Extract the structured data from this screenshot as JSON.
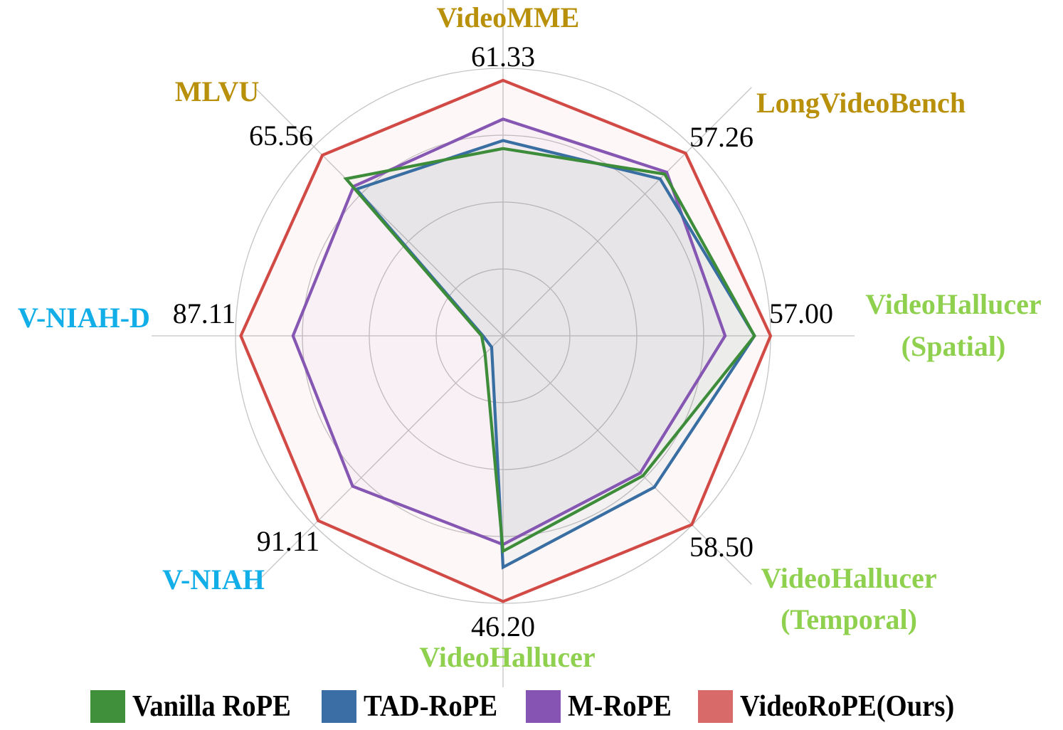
{
  "chart_data": {
    "type": "radar",
    "title": "",
    "axes": [
      {
        "name": "VideoMME",
        "label_lines": [
          "VideoMME"
        ],
        "group": "long-video",
        "max_label": "61.33"
      },
      {
        "name": "LongVideoBench",
        "label_lines": [
          "LongVideoBench"
        ],
        "group": "long-video",
        "max_label": "57.26"
      },
      {
        "name": "VideoHallucer (Spatial)",
        "label_lines": [
          "VideoHallucer",
          "(Spatial)"
        ],
        "group": "hallucination",
        "max_label": "57.00"
      },
      {
        "name": "VideoHallucer (Temporal)",
        "label_lines": [
          "VideoHallucer",
          "(Temporal)"
        ],
        "group": "hallucination",
        "max_label": "58.50"
      },
      {
        "name": "VideoHallucer",
        "label_lines": [
          "VideoHallucer"
        ],
        "group": "hallucination",
        "max_label": "46.20"
      },
      {
        "name": "V-NIAH",
        "label_lines": [
          "V-NIAH"
        ],
        "group": "retrieval",
        "max_label": "91.11"
      },
      {
        "name": "V-NIAH-D",
        "label_lines": [
          "V-NIAH-D"
        ],
        "group": "retrieval",
        "max_label": "87.11"
      },
      {
        "name": "MLVU",
        "label_lines": [
          "MLVU"
        ],
        "group": "long-video",
        "max_label": "65.56"
      }
    ],
    "group_colors": {
      "long-video": "#b8900a",
      "hallucination": "#8fd14f",
      "retrieval": "#12aee8"
    },
    "series": [
      {
        "name": "Vanilla RoPE",
        "color": "#3d8c3a",
        "values": [
          45.1,
          50.6,
          53.5,
          43.2,
          37.5,
          8.9,
          7.1,
          56.8
        ],
        "radius_frac": [
          0.7,
          0.855,
          0.94,
          0.74,
          0.805,
          0.095,
          0.08,
          0.83
        ]
      },
      {
        "name": "TAD-RoPE",
        "color": "#396ea3",
        "values": [
          46.9,
          49.1,
          53.5,
          46.8,
          40.1,
          5.7,
          6.9,
          53.1
        ],
        "radius_frac": [
          0.73,
          0.83,
          0.94,
          0.8,
          0.865,
          0.06,
          0.075,
          0.775
        ]
      },
      {
        "name": "M-RoPE",
        "color": "#8656b3",
        "values": [
          52.1,
          51.3,
          47.3,
          42.6,
          36.3,
          74.0,
          69.6,
          54.1
        ],
        "radius_frac": [
          0.81,
          0.865,
          0.83,
          0.725,
          0.78,
          0.795,
          0.785,
          0.79
        ]
      },
      {
        "name": "VideoRoPE(Ours)",
        "color": "#d24a45",
        "values": [
          61.33,
          57.26,
          57.0,
          58.5,
          46.2,
          91.11,
          87.11,
          65.56
        ],
        "radius_frac": [
          0.955,
          0.965,
          1.0,
          0.998,
          0.993,
          0.977,
          0.98,
          0.955
        ]
      }
    ],
    "grid": {
      "rings": 4,
      "spokes": 8,
      "on": true
    },
    "legend": {
      "position": "bottom",
      "entries": [
        {
          "label": "Vanilla RoPE",
          "swatch": "#3f8f3b"
        },
        {
          "label": "TAD-RoPE",
          "swatch": "#3a6ea5"
        },
        {
          "label": "M-RoPE",
          "swatch": "#8655b3"
        },
        {
          "label": "VideoRoPE(Ours)",
          "swatch": "#d86b69"
        }
      ]
    }
  }
}
